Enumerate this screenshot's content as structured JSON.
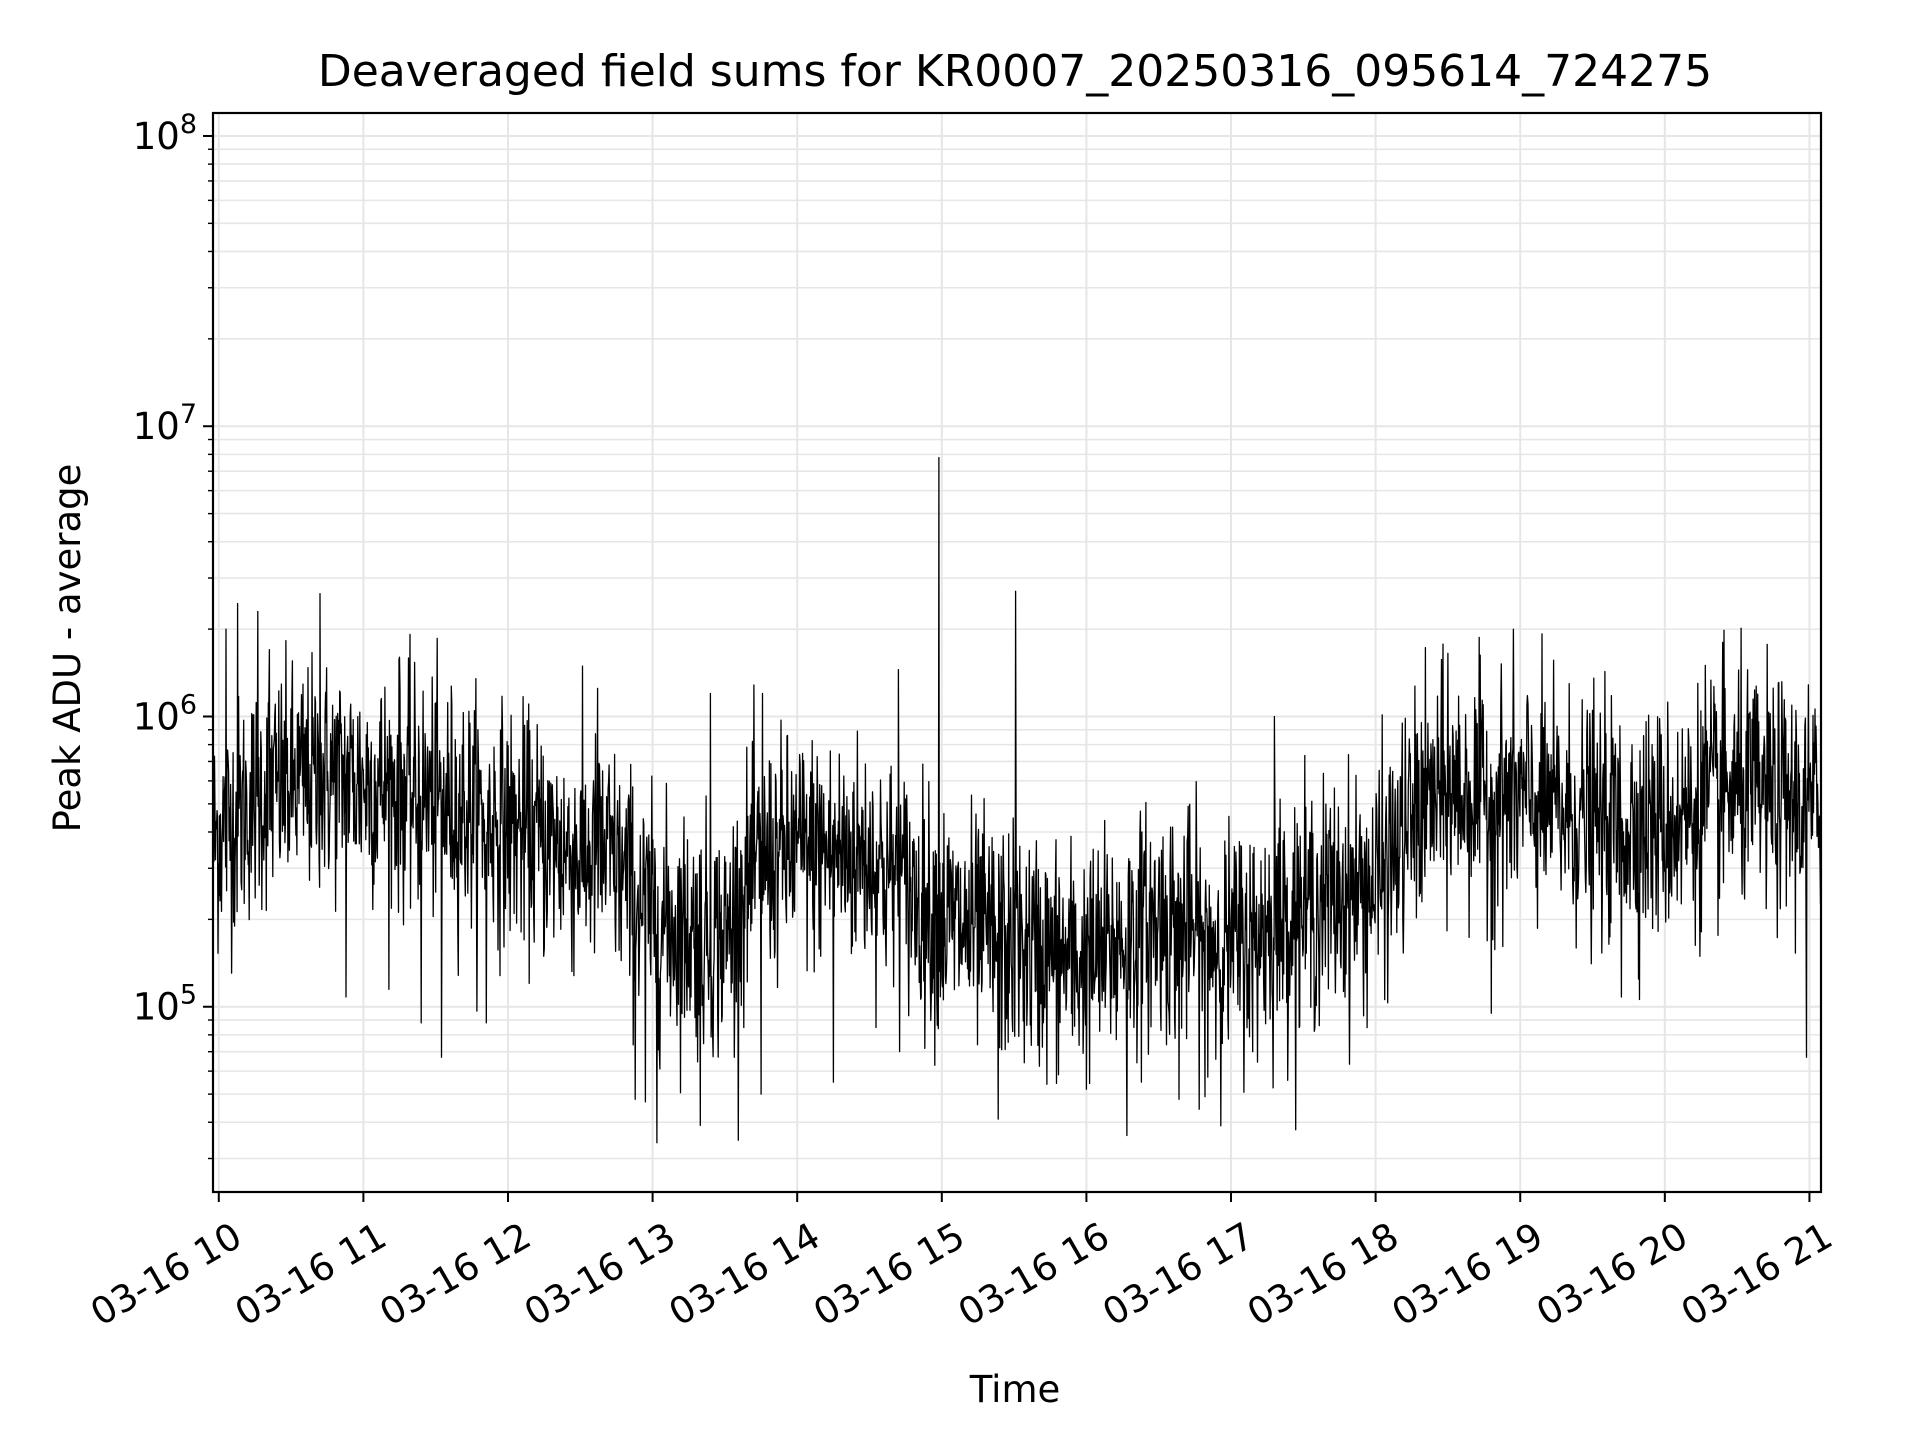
{
  "chart_data": {
    "type": "line",
    "title": "Deaveraged field sums for KR0007_20250316_095614_724275",
    "xlabel": "Time",
    "ylabel": "Peak ADU - average",
    "yscale": "log",
    "ylim": [
      23000,
      120000000
    ],
    "xlim_hours": [
      9.96,
      21.08
    ],
    "grid": true,
    "line_color": "#000000",
    "grid_color": "#e6e6e6",
    "x_ticks": [
      {
        "hour": 10,
        "label": "03-16 10"
      },
      {
        "hour": 11,
        "label": "03-16 11"
      },
      {
        "hour": 12,
        "label": "03-16 12"
      },
      {
        "hour": 13,
        "label": "03-16 13"
      },
      {
        "hour": 14,
        "label": "03-16 14"
      },
      {
        "hour": 15,
        "label": "03-16 15"
      },
      {
        "hour": 16,
        "label": "03-16 16"
      },
      {
        "hour": 17,
        "label": "03-16 17"
      },
      {
        "hour": 18,
        "label": "03-16 18"
      },
      {
        "hour": 19,
        "label": "03-16 19"
      },
      {
        "hour": 20,
        "label": "03-16 20"
      },
      {
        "hour": 21,
        "label": "03-16 21"
      }
    ],
    "y_ticks": [
      {
        "value": 100000,
        "base": "10",
        "exp": "5"
      },
      {
        "value": 1000000,
        "base": "10",
        "exp": "6"
      },
      {
        "value": 10000000,
        "base": "10",
        "exp": "7"
      },
      {
        "value": 100000000,
        "base": "10",
        "exp": "8"
      }
    ],
    "trend_hours": [
      9.96,
      10.3,
      10.7,
      11.0,
      11.5,
      12.0,
      12.5,
      12.7,
      13.0,
      13.5,
      13.7,
      14.0,
      14.5,
      15.0,
      15.5,
      16.0,
      16.5,
      17.0,
      17.5,
      18.0,
      18.3,
      18.5,
      19.0,
      19.5,
      20.0,
      20.5,
      21.08
    ],
    "trend_values": [
      380000,
      550000,
      620000,
      600000,
      520000,
      420000,
      330000,
      330000,
      200000,
      170000,
      300000,
      350000,
      330000,
      200000,
      160000,
      140000,
      200000,
      160000,
      220000,
      260000,
      480000,
      550000,
      520000,
      430000,
      420000,
      560000,
      480000
    ],
    "spikes": [
      {
        "hour": 14.98,
        "value": 7800000
      },
      {
        "hour": 15.51,
        "value": 2700000
      },
      {
        "hour": 10.7,
        "value": 2650000
      },
      {
        "hour": 10.13,
        "value": 2450000
      },
      {
        "hour": 10.27,
        "value": 2300000
      },
      {
        "hour": 10.05,
        "value": 2000000
      },
      {
        "hour": 10.35,
        "value": 1700000
      },
      {
        "hour": 11.25,
        "value": 1600000
      },
      {
        "hour": 14.7,
        "value": 1450000
      },
      {
        "hour": 18.5,
        "value": 1650000
      },
      {
        "hour": 20.4,
        "value": 1800000
      },
      {
        "hour": 20.28,
        "value": 1500000
      },
      {
        "hour": 20.98,
        "value": 1500000
      },
      {
        "hour": 12.62,
        "value": 1250000
      },
      {
        "hour": 13.4,
        "value": 1200000
      },
      {
        "hour": 13.76,
        "value": 1200000
      },
      {
        "hour": 17.3,
        "value": 1000000
      },
      {
        "hour": 19.5,
        "value": 1050000
      },
      {
        "hour": 13.03,
        "value": 34000
      },
      {
        "hour": 16.28,
        "value": 36000
      },
      {
        "hour": 15.39,
        "value": 41000
      },
      {
        "hour": 13.33,
        "value": 39000
      },
      {
        "hour": 12.88,
        "value": 48000
      },
      {
        "hour": 12.95,
        "value": 47000
      },
      {
        "hour": 16.64,
        "value": 48000
      },
      {
        "hour": 16.82,
        "value": 49000
      },
      {
        "hour": 13.75,
        "value": 50000
      },
      {
        "hour": 16.0,
        "value": 52000
      },
      {
        "hour": 14.25,
        "value": 55000
      },
      {
        "hour": 11.54,
        "value": 67000
      },
      {
        "hour": 20.98,
        "value": 67000
      },
      {
        "hour": 17.15,
        "value": 70000
      },
      {
        "hour": 11.85,
        "value": 88000
      },
      {
        "hour": 11.4,
        "value": 88000
      },
      {
        "hour": 18.8,
        "value": 95000
      },
      {
        "hour": 19.7,
        "value": 108000
      },
      {
        "hour": 10.88,
        "value": 108000
      }
    ]
  }
}
